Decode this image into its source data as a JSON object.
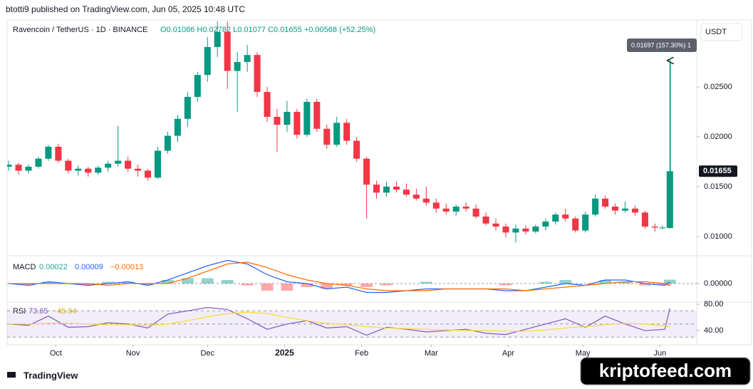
{
  "header": "btotti9 published on TradingView.com, Jun 05, 2025 10:48 UTC",
  "footer": "TradingView",
  "watermark": "kriptofeed.com",
  "chart_data": [
    {
      "type": "candlestick",
      "title": "Ravencoin / TetherUS · 1D · BINANCE",
      "subtitle": "O0.01086 H0.02782 L0.01077 C0.01655 +0.00568 (+52.25%)",
      "unit": "USDT",
      "last_label": "0.01655",
      "annotation": "0.01697 (157.30%) 1",
      "up_color": "#089981",
      "down_color": "#f23645",
      "x": [
        0,
        4,
        8,
        12,
        16,
        20,
        24,
        28,
        32,
        36,
        40,
        44,
        48,
        52,
        56,
        60,
        64,
        68,
        72,
        76,
        80,
        84,
        88,
        92,
        96,
        100,
        104,
        108,
        112,
        116,
        120,
        124,
        128,
        132,
        136,
        140,
        144,
        148,
        152,
        156,
        160,
        164,
        168,
        172,
        176,
        180,
        184,
        188,
        192,
        196,
        200,
        204,
        208,
        212,
        216,
        220,
        224,
        228,
        232,
        236,
        240,
        244,
        248,
        252,
        256,
        260,
        263,
        266
      ],
      "open": [
        0.017,
        0.0172,
        0.0166,
        0.017,
        0.0178,
        0.019,
        0.0176,
        0.0166,
        0.0168,
        0.0164,
        0.0169,
        0.0173,
        0.0176,
        0.0168,
        0.0166,
        0.0159,
        0.0186,
        0.0201,
        0.0218,
        0.024,
        0.0262,
        0.029,
        0.0305,
        0.0266,
        0.0275,
        0.0282,
        0.0245,
        0.022,
        0.0212,
        0.0225,
        0.0202,
        0.0235,
        0.0208,
        0.0192,
        0.0214,
        0.0196,
        0.0178,
        0.0152,
        0.0144,
        0.015,
        0.0147,
        0.0142,
        0.0138,
        0.0134,
        0.0128,
        0.0125,
        0.013,
        0.0128,
        0.012,
        0.0113,
        0.011,
        0.0104,
        0.0108,
        0.0105,
        0.011,
        0.0115,
        0.0122,
        0.0118,
        0.0106,
        0.0122,
        0.0138,
        0.013,
        0.0126,
        0.0128,
        0.0124,
        0.011,
        0.0109,
        0.01086
      ],
      "high": [
        0.0176,
        0.0174,
        0.0172,
        0.018,
        0.0192,
        0.0193,
        0.0178,
        0.0171,
        0.017,
        0.0171,
        0.0176,
        0.0211,
        0.018,
        0.0172,
        0.0168,
        0.019,
        0.0205,
        0.0222,
        0.0245,
        0.0265,
        0.03,
        0.0318,
        0.0316,
        0.0285,
        0.0292,
        0.0285,
        0.025,
        0.0228,
        0.0236,
        0.0228,
        0.0238,
        0.0238,
        0.0212,
        0.022,
        0.0218,
        0.02,
        0.018,
        0.0156,
        0.0155,
        0.0155,
        0.0153,
        0.0148,
        0.015,
        0.0138,
        0.0133,
        0.0132,
        0.0134,
        0.0132,
        0.0124,
        0.0118,
        0.0113,
        0.0112,
        0.0111,
        0.0112,
        0.0118,
        0.0124,
        0.0128,
        0.012,
        0.0125,
        0.0142,
        0.0141,
        0.0133,
        0.0135,
        0.0131,
        0.0126,
        0.0113,
        0.0111,
        0.02782
      ],
      "low": [
        0.0166,
        0.0162,
        0.0163,
        0.0168,
        0.0176,
        0.0174,
        0.0163,
        0.0161,
        0.016,
        0.0162,
        0.0165,
        0.017,
        0.0165,
        0.016,
        0.0156,
        0.0158,
        0.0183,
        0.0195,
        0.021,
        0.0235,
        0.0255,
        0.028,
        0.0248,
        0.0225,
        0.0265,
        0.024,
        0.0215,
        0.0185,
        0.0205,
        0.0198,
        0.02,
        0.0205,
        0.0188,
        0.019,
        0.0192,
        0.0175,
        0.0118,
        0.0138,
        0.014,
        0.0144,
        0.014,
        0.0136,
        0.0131,
        0.0124,
        0.0122,
        0.0121,
        0.0125,
        0.0118,
        0.0111,
        0.0106,
        0.0099,
        0.0094,
        0.0102,
        0.0103,
        0.0106,
        0.0112,
        0.0115,
        0.0104,
        0.0104,
        0.012,
        0.0128,
        0.0122,
        0.0124,
        0.0121,
        0.0108,
        0.0105,
        0.0107,
        0.01077
      ],
      "close": [
        0.0172,
        0.0166,
        0.017,
        0.0178,
        0.019,
        0.0176,
        0.0166,
        0.0168,
        0.0164,
        0.0169,
        0.0173,
        0.0176,
        0.0168,
        0.0166,
        0.0159,
        0.0186,
        0.0201,
        0.0218,
        0.024,
        0.0262,
        0.029,
        0.0305,
        0.0266,
        0.0275,
        0.0282,
        0.0245,
        0.022,
        0.0212,
        0.0225,
        0.0202,
        0.0235,
        0.0208,
        0.0192,
        0.0214,
        0.0196,
        0.0178,
        0.0152,
        0.0144,
        0.015,
        0.0147,
        0.0142,
        0.0138,
        0.0134,
        0.0128,
        0.0125,
        0.013,
        0.0128,
        0.012,
        0.0113,
        0.011,
        0.0104,
        0.0108,
        0.0105,
        0.011,
        0.0115,
        0.0122,
        0.0118,
        0.0106,
        0.0122,
        0.0138,
        0.013,
        0.0126,
        0.0128,
        0.0124,
        0.011,
        0.0109,
        0.0109,
        0.01655
      ],
      "xlim": [
        -0.6,
        276.8
      ],
      "ylim": [
        0.00814,
        0.03157
      ],
      "yticks": [
        {
          "value": 0.01,
          "label": "0.01000"
        },
        {
          "value": 0.015,
          "label": "0.01500"
        },
        {
          "value": 0.02,
          "label": "0.02000"
        },
        {
          "value": 0.025,
          "label": "0.02500"
        }
      ],
      "xticks": [
        {
          "value": 19,
          "label": "Oct"
        },
        {
          "value": 50,
          "label": "Nov"
        },
        {
          "value": 80,
          "label": "Dec"
        },
        {
          "value": 111,
          "label": "2025"
        },
        {
          "value": 142,
          "label": "Feb"
        },
        {
          "value": 170,
          "label": "Mar"
        },
        {
          "value": 201,
          "label": "Apr"
        },
        {
          "value": 231,
          "label": "May"
        },
        {
          "value": 262,
          "label": "Jun"
        }
      ]
    },
    {
      "type": "macd",
      "title": "MACD",
      "legend_values": [
        "0.00022",
        "0.00009",
        "−0.00013"
      ],
      "x": [
        0,
        8,
        16,
        24,
        32,
        40,
        48,
        56,
        64,
        72,
        80,
        88,
        96,
        104,
        112,
        120,
        128,
        136,
        144,
        152,
        160,
        168,
        176,
        184,
        192,
        200,
        208,
        216,
        224,
        232,
        240,
        248,
        256,
        264,
        266
      ],
      "xlim": [
        -0.6,
        276.8
      ],
      "ylim": [
        -0.001,
        0.00152
      ],
      "yticks": [
        {
          "value": 0,
          "label": "0.00000"
        }
      ],
      "series": [
        {
          "style": "histogram",
          "color": "#26a69a",
          "negative_color": "#ff5252",
          "values": [
            0,
            -0.0001,
            0.0001,
            0,
            -0.0001,
            0.0001,
            0.0001,
            -0.0001,
            0.0002,
            0.0003,
            0.0003,
            0.0002,
            -0.0001,
            -0.0004,
            -0.0004,
            -0.0002,
            -0.0003,
            -0.0001,
            -0.0002,
            -0.0001,
            0,
            0.0001,
            0,
            0,
            0,
            -0.0001,
            0,
            0.0001,
            0.0002,
            0,
            0.0002,
            0.0001,
            -0.0001,
            -0.0001,
            0.00022
          ]
        },
        {
          "style": "line",
          "color": "#2962ff",
          "values": [
            0,
            -0.0001,
            0.0001,
            0,
            -0.0001,
            0,
            0.0001,
            -0.0001,
            0.0002,
            0.0006,
            0.001,
            0.0013,
            0.0011,
            0.0005,
            0.0001,
            0,
            -0.0003,
            -0.0002,
            -0.0005,
            -0.0005,
            -0.0004,
            -0.0003,
            -0.0003,
            -0.0003,
            -0.0003,
            -0.0004,
            -0.0004,
            -0.0002,
            0,
            -0.0001,
            0.0002,
            0.0002,
            0,
            -0.0001,
            9e-05
          ]
        },
        {
          "style": "line",
          "color": "#ff6d00",
          "values": [
            0,
            0,
            0,
            0,
            0,
            -0.0001,
            0,
            0,
            0,
            0.0003,
            0.0007,
            0.0011,
            0.0012,
            0.0009,
            0.0005,
            0.0002,
            0,
            -0.0001,
            -0.0003,
            -0.0004,
            -0.0004,
            -0.0004,
            -0.0003,
            -0.0003,
            -0.0003,
            -0.0003,
            -0.0004,
            -0.0003,
            -0.0002,
            -0.0001,
            0,
            0.0001,
            0.0001,
            0,
            -0.00013
          ]
        }
      ]
    },
    {
      "type": "rsi",
      "title": "RSI",
      "legend_values": [
        "73.65",
        "45.94"
      ],
      "x": [
        0,
        8,
        16,
        24,
        32,
        40,
        48,
        56,
        64,
        72,
        80,
        88,
        96,
        104,
        112,
        120,
        128,
        136,
        144,
        152,
        160,
        168,
        176,
        184,
        192,
        200,
        208,
        216,
        224,
        232,
        240,
        248,
        256,
        264,
        266
      ],
      "xlim": [
        -0.6,
        276.8
      ],
      "ylim": [
        19.5,
        82.2
      ],
      "yticks": [
        {
          "value": 80,
          "label": "80.00"
        },
        {
          "value": 40,
          "label": "40.00"
        }
      ],
      "levels": [
        70,
        50,
        30
      ],
      "band_color": "#7e57c2",
      "series": [
        {
          "style": "line",
          "color": "#7e57c2",
          "values": [
            50,
            48,
            62,
            45,
            46,
            52,
            50,
            44,
            65,
            70,
            75,
            72,
            58,
            42,
            50,
            55,
            44,
            46,
            33,
            45,
            42,
            38,
            40,
            42,
            36,
            34,
            42,
            50,
            58,
            45,
            62,
            50,
            40,
            42,
            73.65
          ]
        },
        {
          "style": "line",
          "color": "#fdd835",
          "values": [
            50,
            50,
            51,
            51,
            50,
            49,
            49,
            48,
            50,
            55,
            61,
            66,
            68,
            66,
            60,
            55,
            51,
            49,
            46,
            44,
            43,
            42,
            41,
            40,
            40,
            39,
            39,
            41,
            44,
            46,
            49,
            51,
            50,
            47,
            45.94
          ]
        }
      ]
    }
  ]
}
